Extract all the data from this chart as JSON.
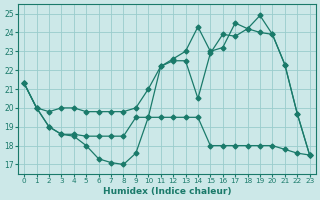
{
  "xlabel": "Humidex (Indice chaleur)",
  "xlim": [
    -0.5,
    23.5
  ],
  "ylim": [
    16.5,
    25.5
  ],
  "xticks": [
    0,
    1,
    2,
    3,
    4,
    5,
    6,
    7,
    8,
    9,
    10,
    11,
    12,
    13,
    14,
    15,
    16,
    17,
    18,
    19,
    20,
    21,
    22,
    23
  ],
  "yticks": [
    17,
    18,
    19,
    20,
    21,
    22,
    23,
    24,
    25
  ],
  "background_color": "#cce8e8",
  "grid_color": "#99cccc",
  "line_color": "#1a7a6a",
  "line1_x": [
    0,
    1,
    2,
    3,
    4,
    5,
    6,
    7,
    8,
    9,
    10,
    11,
    12,
    13,
    14,
    15,
    16,
    17,
    18,
    19,
    20,
    21,
    22,
    23
  ],
  "line1_y": [
    21.3,
    20.0,
    19.0,
    18.6,
    18.5,
    18.0,
    17.3,
    17.1,
    17.0,
    17.6,
    19.5,
    22.2,
    22.5,
    22.5,
    20.5,
    22.9,
    23.9,
    23.8,
    24.2,
    24.9,
    23.9,
    22.3,
    19.7,
    17.5
  ],
  "line2_x": [
    0,
    1,
    2,
    3,
    4,
    5,
    6,
    7,
    8,
    9,
    10,
    11,
    12,
    13,
    14,
    15,
    16,
    17,
    18,
    19,
    20,
    21,
    22,
    23
  ],
  "line2_y": [
    21.3,
    20.0,
    19.8,
    20.0,
    20.0,
    19.8,
    19.8,
    19.8,
    19.8,
    20.0,
    21.0,
    22.2,
    22.6,
    23.0,
    24.3,
    23.0,
    23.2,
    24.5,
    24.2,
    24.0,
    23.9,
    22.3,
    19.7,
    17.5
  ],
  "line3_x": [
    0,
    1,
    2,
    3,
    4,
    5,
    6,
    7,
    8,
    9,
    10,
    11,
    12,
    13,
    14,
    15,
    16,
    17,
    18,
    19,
    20,
    21,
    22,
    23
  ],
  "line3_y": [
    21.3,
    20.0,
    19.0,
    18.6,
    18.6,
    18.5,
    18.5,
    18.5,
    18.5,
    19.5,
    19.5,
    19.5,
    19.5,
    19.5,
    19.5,
    18.0,
    18.0,
    18.0,
    18.0,
    18.0,
    18.0,
    17.8,
    17.6,
    17.5
  ]
}
